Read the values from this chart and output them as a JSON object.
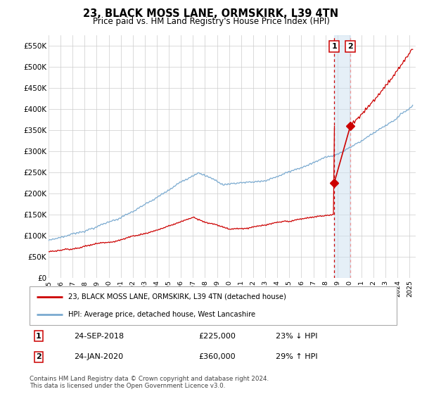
{
  "title": "23, BLACK MOSS LANE, ORMSKIRK, L39 4TN",
  "subtitle": "Price paid vs. HM Land Registry's House Price Index (HPI)",
  "ylabel_ticks": [
    "£0",
    "£50K",
    "£100K",
    "£150K",
    "£200K",
    "£250K",
    "£300K",
    "£350K",
    "£400K",
    "£450K",
    "£500K",
    "£550K"
  ],
  "ytick_values": [
    0,
    50000,
    100000,
    150000,
    200000,
    250000,
    300000,
    350000,
    400000,
    450000,
    500000,
    550000
  ],
  "ylim": [
    0,
    575000
  ],
  "xlim_start": 1995.0,
  "xlim_end": 2025.5,
  "hpi_color": "#7aaad0",
  "price_color": "#cc0000",
  "legend_label_red": "23, BLACK MOSS LANE, ORMSKIRK, L39 4TN (detached house)",
  "legend_label_blue": "HPI: Average price, detached house, West Lancashire",
  "annotation1_date": "24-SEP-2018",
  "annotation1_price": "£225,000",
  "annotation1_pct": "23% ↓ HPI",
  "annotation2_date": "24-JAN-2020",
  "annotation2_price": "£360,000",
  "annotation2_pct": "29% ↑ HPI",
  "footnote": "Contains HM Land Registry data © Crown copyright and database right 2024.\nThis data is licensed under the Open Government Licence v3.0.",
  "marker1_x": 2018.73,
  "marker1_y": 225000,
  "marker2_x": 2020.07,
  "marker2_y": 360000
}
